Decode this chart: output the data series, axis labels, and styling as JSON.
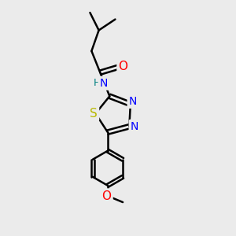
{
  "background_color": "#ebebeb",
  "atom_colors": {
    "C": "#000000",
    "N": "#0000ff",
    "O": "#ff0000",
    "S": "#b8b800",
    "H": "#008080"
  },
  "bond_color": "#000000",
  "bond_width": 1.8,
  "fig_size": [
    3.0,
    3.0
  ],
  "dpi": 100,
  "xlim": [
    0,
    10
  ],
  "ylim": [
    0,
    10
  ]
}
